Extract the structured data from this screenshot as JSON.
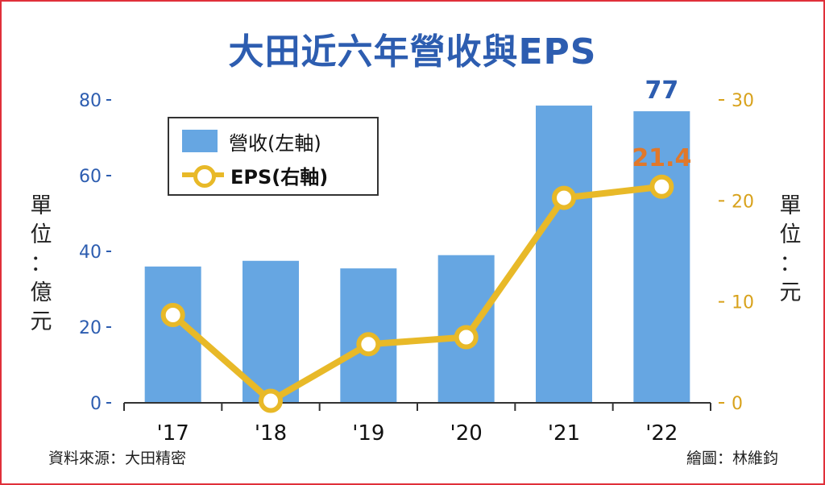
{
  "title": "大田近六年營收與EPS",
  "unit_left": "單位：億元",
  "unit_right": "單位：元",
  "source": "資料來源：大田精密",
  "credit": "繪圖：林維鈞",
  "colors": {
    "bar": "#66a6e2",
    "line": "#e8b928",
    "left_axis": "#2d5db0",
    "right_axis": "#d8a21c",
    "label_orange": "#e0782a",
    "frame": "#e0303a"
  },
  "chart_data": {
    "type": "bar",
    "categories": [
      "'17",
      "'18",
      "'19",
      "'20",
      "'21",
      "'22"
    ],
    "series": [
      {
        "name": "營收(左軸)",
        "type": "bar",
        "axis": "left",
        "values": [
          36,
          37.5,
          35.5,
          39,
          78.5,
          77
        ]
      },
      {
        "name": "EPS(右軸)",
        "type": "line",
        "axis": "right",
        "values": [
          8.7,
          0.2,
          5.8,
          6.5,
          20.3,
          21.4
        ]
      }
    ],
    "data_labels": {
      "bar_last": "77",
      "line_last": "21.4"
    },
    "y_left": {
      "ticks": [
        "0",
        "20",
        "40",
        "60",
        "80"
      ],
      "range": [
        0,
        80
      ]
    },
    "y_right": {
      "ticks": [
        "0",
        "10",
        "20",
        "30"
      ],
      "range": [
        0,
        30
      ]
    },
    "legend": [
      {
        "label": "營收(左軸)",
        "kind": "bar"
      },
      {
        "label": "EPS(右軸)",
        "kind": "line"
      }
    ],
    "legend_position": "top-left",
    "grid": false
  }
}
